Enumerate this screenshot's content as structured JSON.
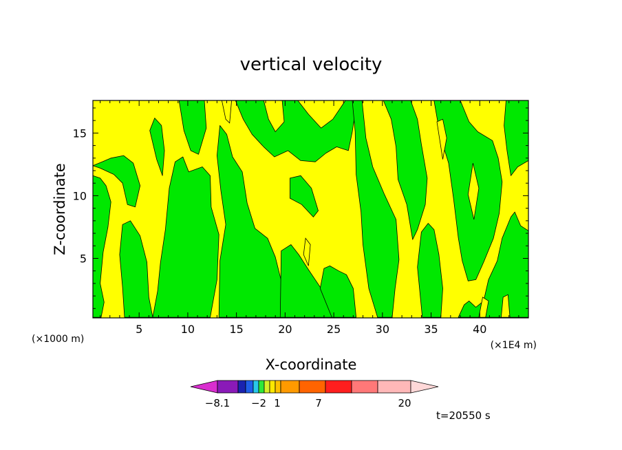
{
  "chart_data": {
    "type": "heatmap",
    "title": "vertical velocity",
    "xlabel": "X-coordinate",
    "ylabel": "Z-coordinate",
    "x_unit_left": "(×1000 m)",
    "x_unit_right": "(×1E4 m)",
    "x_ticks": [
      5,
      10,
      15,
      20,
      25,
      30,
      35,
      40
    ],
    "x_tick_labels": [
      "5",
      "10",
      "15",
      "20",
      "25",
      "30",
      "35",
      "40"
    ],
    "y_ticks": [
      5,
      10,
      15
    ],
    "y_tick_labels": [
      "5",
      "10",
      "15"
    ],
    "xlim": [
      0.25,
      45.0
    ],
    "ylim": [
      0.25,
      17.6
    ],
    "time_label": "t=20550 s",
    "colorbar": {
      "labels": [
        "−8.1",
        "−2",
        "1",
        "7",
        "20"
      ],
      "colors": [
        "#d92ecf",
        "#8a1ab8",
        "#1a23b0",
        "#1f5ee8",
        "#29c8e8",
        "#2ee83a",
        "#d6f02a",
        "#ffe800",
        "#ffc200",
        "#ff9a00",
        "#ff6400",
        "#ff1e1e",
        "#ff7878",
        "#ffb8b8",
        "#ffd8d8"
      ]
    },
    "region_colors": {
      "positive": "#ffff00",
      "negative": "#00e800",
      "contour": "#000000"
    },
    "green_regions": [
      [
        [
          0.25,
          0.3
        ],
        [
          1.1,
          0.3
        ],
        [
          1.4,
          1.5
        ],
        [
          1.0,
          3.0
        ],
        [
          1.3,
          5.5
        ],
        [
          1.8,
          7.5
        ],
        [
          2.1,
          9.5
        ],
        [
          1.6,
          10.8
        ],
        [
          1.0,
          11.4
        ],
        [
          0.25,
          11.6
        ]
      ],
      [
        [
          0.25,
          12.4
        ],
        [
          1.0,
          12.2
        ],
        [
          2.4,
          11.7
        ],
        [
          3.3,
          11.0
        ],
        [
          3.8,
          9.3
        ],
        [
          4.6,
          9.1
        ],
        [
          5.1,
          10.8
        ],
        [
          4.4,
          12.6
        ],
        [
          3.4,
          13.2
        ],
        [
          2.1,
          13.0
        ],
        [
          1.2,
          12.7
        ]
      ],
      [
        [
          3.5,
          0.3
        ],
        [
          6.4,
          0.3
        ],
        [
          6.0,
          1.9
        ],
        [
          5.8,
          4.7
        ],
        [
          5.1,
          6.8
        ],
        [
          4.1,
          8.0
        ],
        [
          3.3,
          7.7
        ],
        [
          3.0,
          5.3
        ],
        [
          3.3,
          2.7
        ]
      ],
      [
        [
          6.1,
          15.2
        ],
        [
          6.8,
          12.9
        ],
        [
          7.4,
          11.6
        ],
        [
          7.6,
          13.6
        ],
        [
          7.3,
          15.6
        ],
        [
          6.6,
          16.2
        ]
      ],
      [
        [
          6.4,
          0.3
        ],
        [
          12.3,
          0.3
        ],
        [
          13.0,
          3.3
        ],
        [
          13.2,
          6.9
        ],
        [
          12.4,
          9.1
        ],
        [
          12.3,
          11.6
        ],
        [
          11.5,
          12.3
        ],
        [
          10.1,
          11.9
        ],
        [
          9.5,
          13.1
        ],
        [
          8.7,
          12.7
        ],
        [
          8.1,
          10.6
        ],
        [
          7.7,
          7.3
        ],
        [
          7.2,
          4.7
        ],
        [
          6.9,
          2.4
        ]
      ],
      [
        [
          9.1,
          17.6
        ],
        [
          11.7,
          17.6
        ],
        [
          11.9,
          15.4
        ],
        [
          11.1,
          13.3
        ],
        [
          10.3,
          13.6
        ],
        [
          9.6,
          15.2
        ]
      ],
      [
        [
          13.2,
          0.3
        ],
        [
          20.5,
          0.3
        ],
        [
          19.8,
          2.6
        ],
        [
          19.0,
          5.1
        ],
        [
          18.2,
          6.6
        ],
        [
          16.9,
          7.4
        ],
        [
          16.1,
          9.4
        ],
        [
          15.6,
          11.9
        ],
        [
          14.6,
          13.1
        ],
        [
          14.0,
          14.9
        ],
        [
          13.3,
          15.6
        ],
        [
          13.0,
          13.2
        ],
        [
          13.4,
          10.4
        ],
        [
          13.9,
          7.7
        ],
        [
          13.3,
          4.8
        ]
      ],
      [
        [
          14.9,
          17.6
        ],
        [
          17.8,
          17.6
        ],
        [
          18.3,
          16.1
        ],
        [
          19.0,
          15.1
        ],
        [
          19.9,
          15.9
        ],
        [
          19.7,
          17.6
        ],
        [
          21.3,
          17.6
        ],
        [
          22.4,
          16.5
        ],
        [
          23.7,
          15.4
        ],
        [
          24.9,
          16.1
        ],
        [
          26.2,
          17.6
        ],
        [
          27.4,
          17.6
        ],
        [
          26.9,
          15.1
        ],
        [
          26.5,
          13.6
        ],
        [
          25.3,
          13.9
        ],
        [
          24.2,
          13.4
        ],
        [
          23.1,
          12.7
        ],
        [
          21.6,
          12.8
        ],
        [
          20.3,
          13.6
        ],
        [
          18.9,
          13.1
        ],
        [
          17.8,
          13.9
        ],
        [
          16.6,
          14.9
        ],
        [
          15.7,
          16.1
        ]
      ],
      [
        [
          19.5,
          0.3
        ],
        [
          24.8,
          0.3
        ],
        [
          24.4,
          1.6
        ],
        [
          23.7,
          2.6
        ],
        [
          22.4,
          4.1
        ],
        [
          21.4,
          5.3
        ],
        [
          20.6,
          6.1
        ],
        [
          19.6,
          5.6
        ]
      ],
      [
        [
          20.5,
          9.8
        ],
        [
          21.7,
          9.3
        ],
        [
          22.9,
          8.3
        ],
        [
          23.4,
          8.8
        ],
        [
          22.7,
          10.6
        ],
        [
          21.6,
          11.6
        ],
        [
          20.5,
          11.4
        ]
      ],
      [
        [
          23.6,
          2.6
        ],
        [
          24.8,
          0.3
        ],
        [
          27.3,
          0.3
        ],
        [
          27.0,
          2.6
        ],
        [
          26.3,
          3.7
        ],
        [
          25.5,
          4.0
        ],
        [
          24.6,
          4.4
        ],
        [
          24.0,
          4.2
        ]
      ],
      [
        [
          27.3,
          11.7
        ],
        [
          27.8,
          8.7
        ],
        [
          28.0,
          6.1
        ],
        [
          28.6,
          2.6
        ],
        [
          29.5,
          0.3
        ],
        [
          31.0,
          0.3
        ],
        [
          31.3,
          2.6
        ],
        [
          31.7,
          4.9
        ],
        [
          31.4,
          8.1
        ],
        [
          30.2,
          10.1
        ],
        [
          29.0,
          12.3
        ],
        [
          28.3,
          14.6
        ],
        [
          27.9,
          17.6
        ],
        [
          26.9,
          17.6
        ],
        [
          27.2,
          15.1
        ]
      ],
      [
        [
          30.1,
          17.6
        ],
        [
          32.9,
          17.6
        ],
        [
          33.6,
          16.1
        ],
        [
          34.0,
          14.1
        ],
        [
          34.6,
          11.4
        ],
        [
          34.4,
          9.3
        ],
        [
          33.6,
          7.3
        ],
        [
          33.1,
          6.5
        ],
        [
          32.5,
          9.3
        ],
        [
          31.6,
          11.3
        ],
        [
          31.4,
          13.9
        ],
        [
          30.9,
          16.1
        ]
      ],
      [
        [
          34.1,
          0.3
        ],
        [
          36.0,
          0.3
        ],
        [
          36.2,
          2.6
        ],
        [
          35.8,
          5.3
        ],
        [
          35.3,
          7.3
        ],
        [
          34.7,
          7.8
        ],
        [
          34.0,
          7.1
        ],
        [
          33.6,
          4.3
        ]
      ],
      [
        [
          35.3,
          17.6
        ],
        [
          38.0,
          17.6
        ],
        [
          38.9,
          15.9
        ],
        [
          39.8,
          15.1
        ],
        [
          41.3,
          14.4
        ],
        [
          41.9,
          13.0
        ],
        [
          42.3,
          11.1
        ],
        [
          42.0,
          8.6
        ],
        [
          41.4,
          6.6
        ],
        [
          40.4,
          4.7
        ],
        [
          39.6,
          3.3
        ],
        [
          38.8,
          3.2
        ],
        [
          38.2,
          4.8
        ],
        [
          37.8,
          6.6
        ],
        [
          37.3,
          9.8
        ],
        [
          36.8,
          12.6
        ],
        [
          35.9,
          14.9
        ]
      ],
      [
        [
          37.8,
          0.3
        ],
        [
          45.0,
          0.3
        ],
        [
          45.0,
          7.2
        ],
        [
          44.2,
          7.6
        ],
        [
          43.6,
          8.7
        ],
        [
          43.2,
          8.3
        ],
        [
          42.3,
          6.6
        ],
        [
          41.8,
          4.8
        ],
        [
          40.9,
          3.3
        ],
        [
          40.4,
          1.6
        ],
        [
          39.6,
          1.1
        ],
        [
          38.9,
          1.6
        ],
        [
          38.4,
          1.3
        ]
      ],
      [
        [
          43.2,
          11.6
        ],
        [
          43.9,
          12.3
        ],
        [
          45.0,
          12.8
        ],
        [
          45.0,
          17.6
        ],
        [
          42.7,
          17.6
        ],
        [
          42.5,
          15.6
        ],
        [
          42.8,
          13.6
        ]
      ]
    ],
    "yellow_islands": [
      [
        [
          13.5,
          17.6
        ],
        [
          14.5,
          17.6
        ],
        [
          14.3,
          15.8
        ],
        [
          13.9,
          16.1
        ]
      ],
      [
        [
          35.6,
          15.9
        ],
        [
          36.2,
          12.9
        ],
        [
          36.6,
          14.6
        ],
        [
          36.2,
          16.1
        ]
      ],
      [
        [
          38.8,
          10.1
        ],
        [
          39.4,
          8.1
        ],
        [
          39.9,
          10.6
        ],
        [
          39.3,
          12.6
        ]
      ],
      [
        [
          21.9,
          5.3
        ],
        [
          22.4,
          4.4
        ],
        [
          22.6,
          6.1
        ],
        [
          22.1,
          6.6
        ]
      ],
      [
        [
          39.9,
          0.3
        ],
        [
          40.6,
          0.3
        ],
        [
          40.9,
          1.6
        ],
        [
          40.3,
          1.9
        ]
      ],
      [
        [
          42.2,
          0.3
        ],
        [
          43.1,
          0.3
        ],
        [
          42.9,
          2.1
        ],
        [
          42.4,
          1.9
        ]
      ]
    ]
  }
}
